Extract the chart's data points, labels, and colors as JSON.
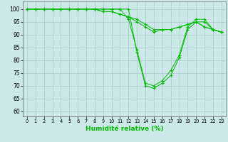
{
  "xlabel": "Humidité relative (%)",
  "x_ticks": [
    0,
    1,
    2,
    3,
    4,
    5,
    6,
    7,
    8,
    9,
    10,
    11,
    12,
    13,
    14,
    15,
    16,
    17,
    18,
    19,
    20,
    21,
    22,
    23
  ],
  "ylim": [
    58,
    103
  ],
  "xlim": [
    -0.5,
    23.5
  ],
  "yticks": [
    60,
    65,
    70,
    75,
    80,
    85,
    90,
    95,
    100
  ],
  "bg_color": "#cce8e8",
  "grid_color": "#aacccc",
  "line_color": "#00bb00",
  "curves": [
    [
      100,
      100,
      100,
      100,
      100,
      100,
      100,
      100,
      100,
      100,
      100,
      100,
      100,
      83,
      70,
      69,
      71,
      74,
      81,
      92,
      95,
      95,
      92,
      91
    ],
    [
      100,
      100,
      100,
      100,
      100,
      100,
      100,
      100,
      100,
      100,
      100,
      100,
      96,
      84,
      71,
      70,
      72,
      76,
      82,
      93,
      96,
      96,
      92,
      91
    ],
    [
      100,
      100,
      100,
      100,
      100,
      100,
      100,
      100,
      100,
      99,
      99,
      98,
      97,
      95,
      93,
      91,
      92,
      92,
      93,
      94,
      95,
      93,
      92,
      91
    ],
    [
      100,
      100,
      100,
      100,
      100,
      100,
      100,
      100,
      100,
      99,
      99,
      98,
      97,
      96,
      94,
      92,
      92,
      92,
      93,
      94,
      95,
      93,
      92,
      91
    ]
  ],
  "tick_fontsize": 5.5,
  "xlabel_fontsize": 6.5
}
